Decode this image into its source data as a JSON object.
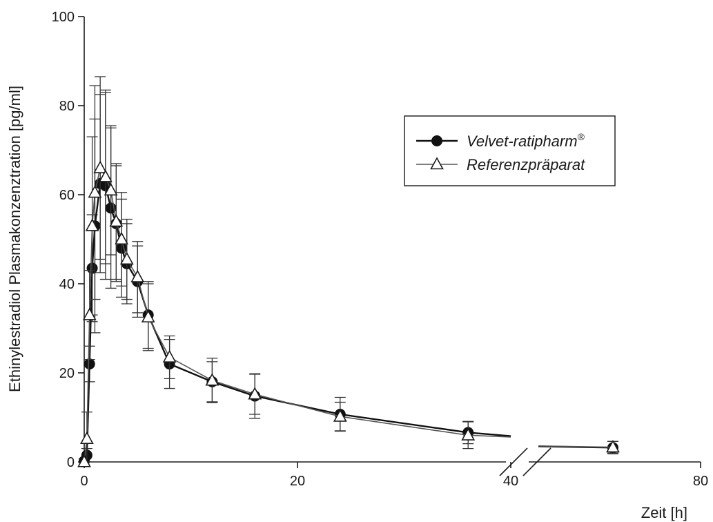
{
  "chart_data": {
    "type": "line",
    "xlabel": "Zeit [h]",
    "ylabel": "Ethinylestradiol Plasmakonzenztration [pg/ml]",
    "xlim": [
      0,
      80
    ],
    "ylim": [
      0,
      100
    ],
    "x_ticks": [
      "0",
      "20",
      "40",
      "80"
    ],
    "y_ticks": [
      "0",
      "20",
      "40",
      "60",
      "80",
      "100"
    ],
    "x_axis_break_between": [
      40,
      72
    ],
    "grid": false,
    "legend_position": "top-right",
    "series": [
      {
        "name": "Velvet-ratipharm",
        "name_mark": "®",
        "marker": "filled-circle",
        "color": "#111111",
        "x": [
          0,
          0.25,
          0.5,
          0.75,
          1.0,
          1.5,
          2.0,
          2.5,
          3.0,
          3.5,
          4.0,
          5.0,
          6.0,
          8.0,
          12.0,
          16.0,
          24.0,
          36.0,
          48.0
        ],
        "y": [
          0.2,
          1.5,
          22,
          43.5,
          53,
          62.5,
          62,
          57,
          53.5,
          48,
          44.5,
          40.5,
          33,
          22,
          18,
          14.8,
          10.7,
          6.6,
          3.2
        ],
        "y_err": [
          0.5,
          1.5,
          4,
          12,
          24,
          20,
          21,
          18,
          13,
          11,
          9,
          8,
          7.5,
          5.5,
          4.5,
          5,
          3.8,
          2.5,
          1.4
        ]
      },
      {
        "name": "Referenzpräparat",
        "marker": "open-triangle",
        "color": "#555555",
        "x": [
          0,
          0.25,
          0.5,
          0.75,
          1.0,
          1.5,
          2.0,
          2.5,
          3.0,
          3.5,
          4.0,
          5.0,
          6.0,
          8.0,
          12.0,
          16.0,
          24.0,
          36.0,
          48.0
        ],
        "y": [
          0,
          5.2,
          33,
          53,
          60.5,
          66,
          64,
          61,
          54,
          50,
          45.5,
          41.5,
          32.5,
          23.5,
          18.3,
          15.2,
          10.2,
          6.0,
          3.3
        ],
        "y_err": [
          0,
          6,
          10,
          20,
          24,
          20.5,
          19.5,
          14.5,
          13,
          10.5,
          9,
          8,
          7.5,
          4.8,
          5,
          4.5,
          3.2,
          3,
          1.3
        ]
      }
    ]
  }
}
